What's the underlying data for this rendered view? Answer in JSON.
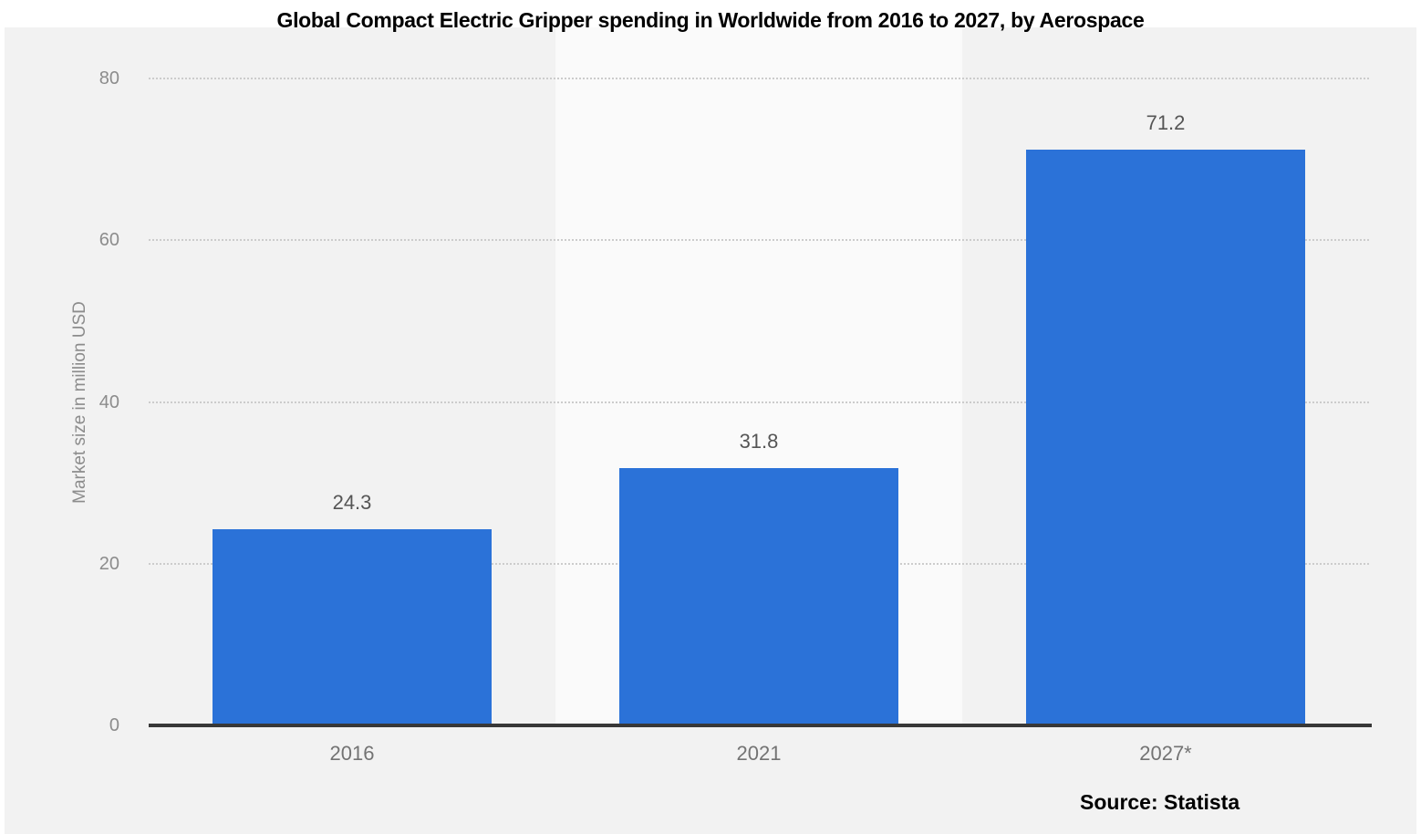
{
  "title": "Global Compact Electric Gripper spending in Worldwide from 2016 to 2027, by Aerospace",
  "source_label": "Source: Statista",
  "chart_data": {
    "type": "bar",
    "title": "Global Compact Electric Gripper spending in Worldwide from 2016 to 2027, by Aerospace",
    "categories": [
      "2016",
      "2021",
      "2027*"
    ],
    "values": [
      24.3,
      31.8,
      71.2
    ],
    "value_labels": [
      "24.3",
      "31.8",
      "71.2"
    ],
    "xlabel": "",
    "ylabel": "Market size in million USD",
    "ylim": [
      0,
      80
    ],
    "yticks": [
      0,
      20,
      40,
      60,
      80
    ],
    "grid": "horizontal-dotted",
    "legend": "none",
    "source": "Source: Statista",
    "colors": {
      "bar": "#2b72d8",
      "panel_background": "#f2f2f2",
      "alt_band": "#fafafa",
      "gridline": "#cccccc",
      "axis_line": "#383838",
      "tick_text": "#8c8c8c",
      "category_text": "#737373",
      "value_text": "#555555",
      "title_text": "#000000"
    }
  }
}
